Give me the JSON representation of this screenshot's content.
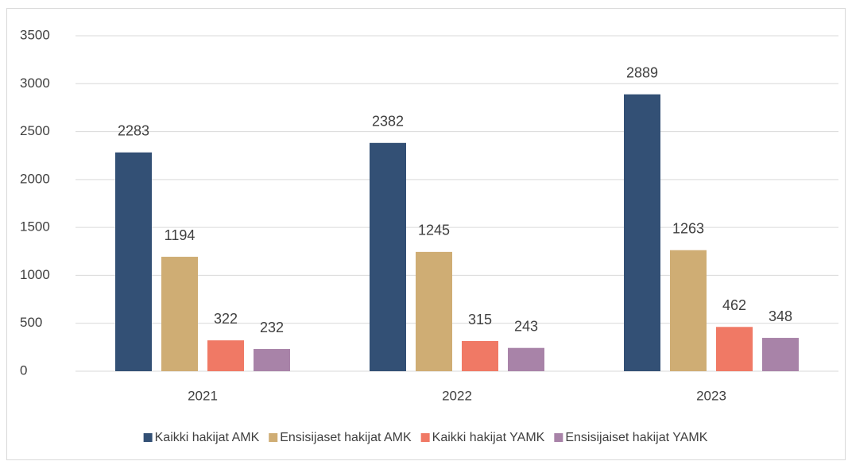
{
  "chart_data": {
    "type": "bar",
    "categories": [
      "2021",
      "2022",
      "2023"
    ],
    "series": [
      {
        "name": "Kaikki hakijat AMK",
        "color": "#335075",
        "values": [
          2283,
          2382,
          2889
        ]
      },
      {
        "name": "Ensisijaset hakijat AMK",
        "color": "#cfad74",
        "values": [
          1194,
          1245,
          1263
        ]
      },
      {
        "name": "Kaikki hakijat YAMK",
        "color": "#f07965",
        "values": [
          322,
          315,
          462
        ]
      },
      {
        "name": "Ensisijaiset hakijat YAMK",
        "color": "#a883a8",
        "values": [
          232,
          243,
          348
        ]
      }
    ],
    "ylim": [
      0,
      3500
    ],
    "yticks": [
      0,
      500,
      1000,
      1500,
      2000,
      2500,
      3000,
      3500
    ],
    "grid": true,
    "legend": "bottom"
  }
}
